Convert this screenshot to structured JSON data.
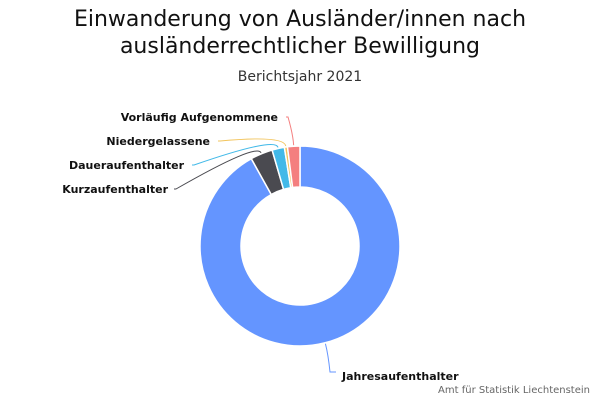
{
  "chart_data": {
    "type": "pie",
    "title_lines": [
      "Einwanderung von Ausländer/innen nach",
      "ausländerrechtlicher Bewilligung"
    ],
    "subtitle": "Berichtsjahr 2021",
    "credit": "Amt für Statistik Liechtenstein",
    "donut": true,
    "legend": "none",
    "slices": [
      {
        "name": "Jahresaufenthalter",
        "share": 0.919,
        "color": "#6495ff"
      },
      {
        "name": "Kurzaufenthalter",
        "share": 0.036,
        "color": "#4a4a50"
      },
      {
        "name": "Daueraufenthalter",
        "share": 0.02,
        "color": "#42b9e8"
      },
      {
        "name": "Niedergelassene",
        "share": 0.005,
        "color": "#f2c45c"
      },
      {
        "name": "Vorläufig Aufgenommene",
        "share": 0.02,
        "color": "#f47f7f"
      }
    ]
  }
}
